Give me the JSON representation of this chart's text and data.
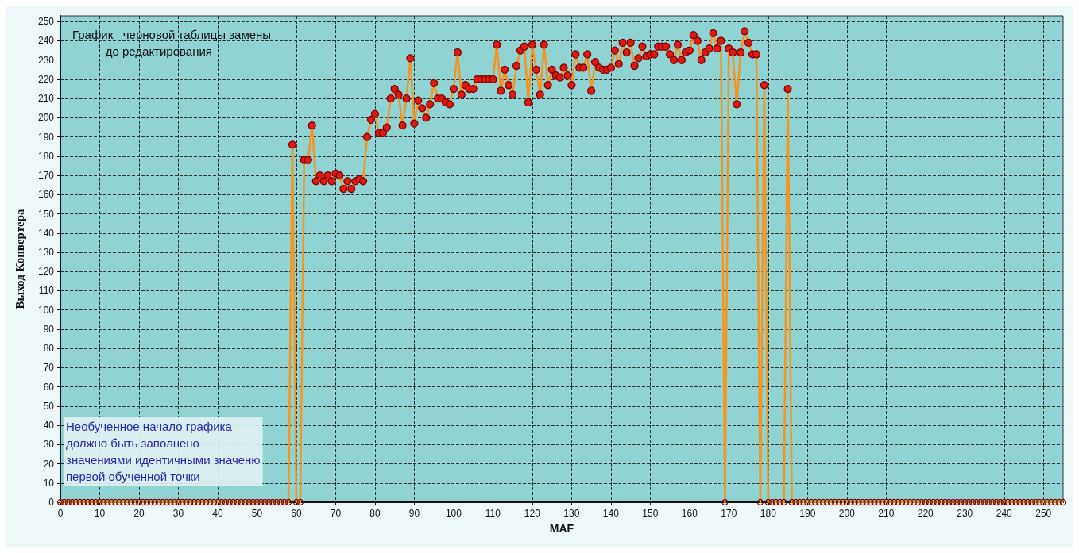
{
  "chart_data": {
    "type": "line",
    "title": "График   черновой таблицы замены\n          до редактирования",
    "xlabel": "MAF",
    "ylabel": "Выход Конвертера",
    "annotations": [
      "Необученное начало графика\nдолжно быть заполнено\nзначениями идентичными значеню\nпервой обученной точки"
    ],
    "xlim": [
      0,
      255
    ],
    "xticks": [
      0,
      10,
      20,
      30,
      40,
      50,
      60,
      70,
      80,
      90,
      100,
      110,
      120,
      130,
      140,
      150,
      160,
      170,
      180,
      190,
      200,
      210,
      220,
      230,
      240,
      250
    ],
    "ylim": [
      0,
      253
    ],
    "yticks": [
      0,
      10,
      20,
      30,
      40,
      50,
      60,
      70,
      80,
      90,
      100,
      110,
      120,
      130,
      140,
      150,
      160,
      170,
      180,
      190,
      200,
      210,
      220,
      230,
      240,
      250
    ],
    "grid": true,
    "marker": "circle",
    "line_style": "solid",
    "x": [
      0,
      1,
      2,
      3,
      4,
      5,
      6,
      7,
      8,
      9,
      10,
      11,
      12,
      13,
      14,
      15,
      16,
      17,
      18,
      19,
      20,
      21,
      22,
      23,
      24,
      25,
      26,
      27,
      28,
      29,
      30,
      31,
      32,
      33,
      34,
      35,
      36,
      37,
      38,
      39,
      40,
      41,
      42,
      43,
      44,
      45,
      46,
      47,
      48,
      49,
      50,
      51,
      52,
      53,
      54,
      55,
      56,
      57,
      58,
      59,
      60,
      61,
      62,
      63,
      64,
      65,
      66,
      67,
      68,
      69,
      70,
      71,
      72,
      73,
      74,
      75,
      76,
      77,
      78,
      79,
      80,
      81,
      82,
      83,
      84,
      85,
      86,
      87,
      88,
      89,
      90,
      91,
      92,
      93,
      94,
      95,
      96,
      97,
      98,
      99,
      100,
      101,
      102,
      103,
      104,
      105,
      106,
      107,
      108,
      109,
      110,
      111,
      112,
      113,
      114,
      115,
      116,
      117,
      118,
      119,
      120,
      121,
      122,
      123,
      124,
      125,
      126,
      127,
      128,
      129,
      130,
      131,
      132,
      133,
      134,
      135,
      136,
      137,
      138,
      139,
      140,
      141,
      142,
      143,
      144,
      145,
      146,
      147,
      148,
      149,
      150,
      151,
      152,
      153,
      154,
      155,
      156,
      157,
      158,
      159,
      160,
      161,
      162,
      163,
      164,
      165,
      166,
      167,
      168,
      169,
      170,
      171,
      172,
      173,
      174,
      175,
      176,
      177,
      178,
      179,
      180,
      181,
      182,
      183,
      184,
      185,
      186,
      187,
      188,
      189,
      190,
      191,
      192,
      193,
      194,
      195,
      196,
      197,
      198,
      199,
      200,
      201,
      202,
      203,
      204,
      205,
      206,
      207,
      208,
      209,
      210,
      211,
      212,
      213,
      214,
      215,
      216,
      217,
      218,
      219,
      220,
      221,
      222,
      223,
      224,
      225,
      226,
      227,
      228,
      229,
      230,
      231,
      232,
      233,
      234,
      235,
      236,
      237,
      238,
      239,
      240,
      241,
      242,
      243,
      244,
      245,
      246,
      247,
      248,
      249,
      250,
      251,
      252,
      253,
      254,
      255
    ],
    "series": [
      {
        "color": "#f7941d",
        "values": [
          0,
          0,
          0,
          0,
          0,
          0,
          0,
          0,
          0,
          0,
          0,
          0,
          0,
          0,
          0,
          0,
          0,
          0,
          0,
          0,
          0,
          0,
          0,
          0,
          0,
          0,
          0,
          0,
          0,
          0,
          0,
          0,
          0,
          0,
          0,
          0,
          0,
          0,
          0,
          0,
          0,
          0,
          0,
          0,
          0,
          0,
          0,
          0,
          0,
          0,
          0,
          0,
          0,
          0,
          0,
          0,
          0,
          0,
          0,
          186,
          0,
          0,
          178,
          178,
          196,
          167,
          170,
          167,
          170,
          167,
          171,
          170,
          163,
          167,
          163,
          167,
          168,
          167,
          190,
          199,
          202,
          192,
          192,
          195,
          210,
          215,
          212,
          196,
          210,
          231,
          197,
          209,
          205,
          200,
          207,
          218,
          210,
          210,
          208,
          207,
          215,
          234,
          212,
          217,
          215,
          215,
          220,
          220,
          220,
          220,
          220,
          238,
          214,
          225,
          217,
          212,
          227,
          235,
          237,
          208,
          238,
          225,
          212,
          238,
          217,
          225,
          222,
          221,
          226,
          222,
          217,
          233,
          226,
          226,
          233,
          214,
          229,
          226,
          225,
          225,
          226,
          235,
          228,
          239,
          234,
          239,
          227,
          231,
          237,
          232,
          233,
          233,
          237,
          237,
          237,
          233,
          230,
          238,
          230,
          234,
          235,
          243,
          240,
          230,
          234,
          236,
          244,
          236,
          240,
          0,
          236,
          234,
          207,
          234,
          245,
          239,
          233,
          233,
          0,
          217,
          0,
          0,
          0,
          0,
          0,
          215,
          0,
          0,
          0,
          0,
          0,
          0,
          0,
          0,
          0,
          0,
          0,
          0,
          0,
          0,
          0,
          0,
          0,
          0,
          0,
          0,
          0,
          0,
          0,
          0,
          0,
          0,
          0,
          0,
          0,
          0,
          0,
          0,
          0,
          0,
          0,
          0,
          0,
          0,
          0,
          0,
          0,
          0,
          0,
          0,
          0,
          0,
          0,
          0,
          0,
          0,
          0,
          0,
          0,
          0,
          0,
          0,
          0,
          0,
          0,
          0,
          0,
          0,
          0,
          0,
          0,
          0,
          0,
          0,
          0,
          0
        ]
      }
    ]
  }
}
